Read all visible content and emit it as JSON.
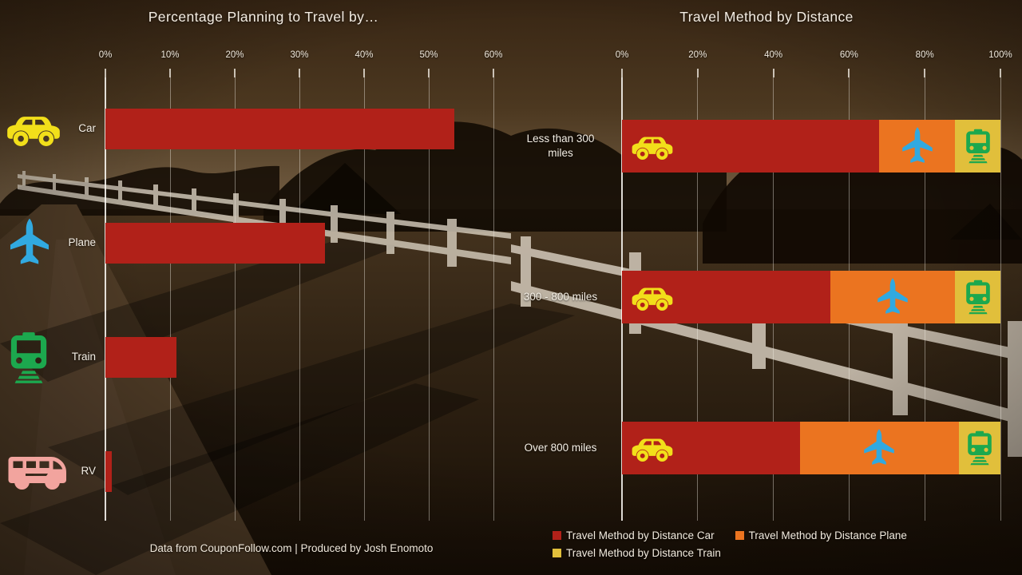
{
  "slide_titles": {
    "left": "Percentage Planning to Travel by…",
    "right": "Travel Method by Distance"
  },
  "chart_data": [
    {
      "type": "bar",
      "orientation": "horizontal",
      "title": "Percentage Planning to Travel by…",
      "categories": [
        "Car",
        "Plane",
        "Train",
        "RV"
      ],
      "values": [
        54,
        34,
        11,
        1
      ],
      "value_unit": "%",
      "xlim": [
        0,
        60
      ],
      "x_ticks": {
        "labels": [
          "0%",
          "10%",
          "20%",
          "30%",
          "40%",
          "50%",
          "60%"
        ],
        "values": [
          0,
          10,
          20,
          30,
          40,
          50,
          60
        ]
      },
      "bar_color": "#B12119",
      "category_icons": [
        "car-icon",
        "plane-icon",
        "train-icon",
        "rv-icon"
      ],
      "grid": true
    },
    {
      "type": "bar",
      "stacked": true,
      "orientation": "horizontal",
      "title": "Travel Method by Distance",
      "categories": [
        "Less than 300 miles",
        "300 - 800 miles",
        "Over 800 miles"
      ],
      "series": [
        {
          "name": "Travel Method by Distance Car",
          "short_name": "Car",
          "color": "#B12119",
          "icon": "car-icon",
          "values": [
            68,
            55,
            47
          ]
        },
        {
          "name": "Travel Method by Distance Plane",
          "short_name": "Plane",
          "color": "#EB7420",
          "icon": "plane-icon",
          "values": [
            20,
            33,
            42
          ]
        },
        {
          "name": "Travel Method by Distance Train",
          "short_name": "Train",
          "color": "#E1BF3B",
          "icon": "train-icon",
          "values": [
            12,
            12,
            11
          ]
        }
      ],
      "xlim": [
        0,
        100
      ],
      "x_ticks": {
        "labels": [
          "0%",
          "20%",
          "40%",
          "60%",
          "80%",
          "100%"
        ],
        "values": [
          0,
          20,
          40,
          60,
          80,
          100
        ]
      },
      "grid": true,
      "legend_position": "bottom-right"
    }
  ],
  "icon_colors": {
    "car": "#F2DF1A",
    "plane": "#31A9E0",
    "train": "#1CA84E",
    "rv": "#F2A49E"
  },
  "footer": "Data from CouponFollow.com | Produced by Josh Enomoto"
}
